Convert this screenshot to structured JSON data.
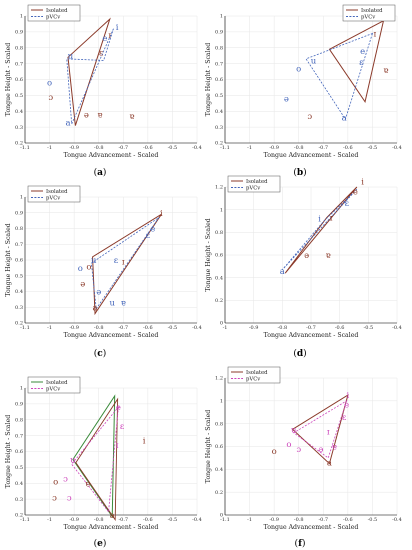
{
  "colors": {
    "isolated": "#8b3a2a",
    "pvcv": "#4466bb",
    "pvcv_alt": "#cc44bb",
    "green": "#3a8a3a",
    "grid": "#e6e6e6",
    "axis": "#000000"
  },
  "chart_data": [
    {
      "type": "scatter",
      "caption": "(a)",
      "xlabel": "Tongue Advancement - Scaled",
      "ylabel": "Tongue Height - Scaled",
      "xlim": [
        -1.1,
        -0.4
      ],
      "ylim": [
        0.2,
        1.0
      ],
      "xticks": [
        "-1.1",
        "-1",
        "-0.9",
        "-0.8",
        "-0.7",
        "-0.6",
        "-0.5",
        "-0.4"
      ],
      "yticks": [
        "0.2",
        "0.3",
        "0.4",
        "0.5",
        "0.6",
        "0.7",
        "0.8",
        "0.9",
        "1"
      ],
      "legend": [
        "Isolated",
        "pVCv"
      ],
      "legend_loc": "top-left",
      "isolated": [
        [
          -0.755,
          0.98
        ],
        [
          -0.895,
          0.31
        ],
        [
          -0.925,
          0.74
        ]
      ],
      "pvcv": [
        [
          -0.74,
          0.92
        ],
        [
          -0.91,
          0.32
        ],
        [
          -0.93,
          0.73
        ],
        [
          -0.78,
          0.72
        ]
      ],
      "points": [
        {
          "label": "i",
          "x": -0.725,
          "y": 0.93,
          "c": "pvcv"
        },
        {
          "label": "ɪ",
          "x": -0.755,
          "y": 0.88,
          "c": "isolated"
        },
        {
          "label": "e",
          "x": -0.775,
          "y": 0.86,
          "c": "pvcv"
        },
        {
          "label": "ɛ",
          "x": -0.79,
          "y": 0.77,
          "c": "isolated"
        },
        {
          "label": "u",
          "x": -0.915,
          "y": 0.75,
          "c": "pvcv"
        },
        {
          "label": "o",
          "x": -1.0,
          "y": 0.58,
          "c": "pvcv"
        },
        {
          "label": "ɔ",
          "x": -0.995,
          "y": 0.49,
          "c": "isolated"
        },
        {
          "label": "ə",
          "x": -0.85,
          "y": 0.38,
          "c": "isolated"
        },
        {
          "label": "ɐ",
          "x": -0.795,
          "y": 0.38,
          "c": "isolated"
        },
        {
          "label": "a",
          "x": -0.925,
          "y": 0.33,
          "c": "pvcv"
        },
        {
          "label": "ɐ",
          "x": -0.665,
          "y": 0.37,
          "c": "isolated"
        }
      ]
    },
    {
      "type": "scatter",
      "caption": "(b)",
      "xlabel": "Tongue Advancement - Scaled",
      "ylabel": "Tongue Height - Scaled",
      "xlim": [
        -1.1,
        -0.4
      ],
      "ylim": [
        0.2,
        1.0
      ],
      "xticks": [
        "-1.1",
        "-1",
        "-0.9",
        "-0.8",
        "-0.7",
        "-0.6",
        "-0.5",
        "-0.4"
      ],
      "yticks": [
        "0.2",
        "0.3",
        "0.4",
        "0.5",
        "0.6",
        "0.7",
        "0.8",
        "0.9",
        "1"
      ],
      "legend": [
        "Isolated",
        "pVCv"
      ],
      "legend_loc": "top-right",
      "isolated": [
        [
          -0.455,
          0.97
        ],
        [
          -0.53,
          0.46
        ],
        [
          -0.675,
          0.79
        ]
      ],
      "pvcv": [
        [
          -0.5,
          0.89
        ],
        [
          -0.61,
          0.35
        ],
        [
          -0.77,
          0.73
        ]
      ],
      "points": [
        {
          "label": "ɪ",
          "x": -0.49,
          "y": 0.89,
          "c": "isolated"
        },
        {
          "label": "e",
          "x": -0.54,
          "y": 0.78,
          "c": "pvcv"
        },
        {
          "label": "ɛ",
          "x": -0.545,
          "y": 0.71,
          "c": "pvcv"
        },
        {
          "label": "ɐ",
          "x": -0.445,
          "y": 0.66,
          "c": "isolated"
        },
        {
          "label": "u",
          "x": -0.74,
          "y": 0.72,
          "c": "pvcv"
        },
        {
          "label": "o",
          "x": -0.8,
          "y": 0.67,
          "c": "pvcv"
        },
        {
          "label": "ə",
          "x": -0.85,
          "y": 0.48,
          "c": "pvcv"
        },
        {
          "label": "ɔ",
          "x": -0.755,
          "y": 0.37,
          "c": "isolated"
        },
        {
          "label": "a",
          "x": -0.615,
          "y": 0.36,
          "c": "pvcv"
        }
      ]
    },
    {
      "type": "scatter",
      "caption": "(c)",
      "xlabel": "Tongue Advancement - Scaled",
      "ylabel": "Tongue Height - Scaled",
      "xlim": [
        -1.1,
        -0.4
      ],
      "ylim": [
        0.2,
        1.0
      ],
      "xticks": [
        "-1.1",
        "-1",
        "-0.9",
        "-0.8",
        "-0.7",
        "-0.6",
        "-0.5",
        "-0.4"
      ],
      "yticks": [
        "0.2",
        "0.3",
        "0.4",
        "0.5",
        "0.6",
        "0.7",
        "0.8",
        "0.9",
        "1"
      ],
      "legend": [
        "Isolated",
        "pVCv"
      ],
      "legend_loc": "top-left",
      "isolated": [
        [
          -0.545,
          0.89
        ],
        [
          -0.815,
          0.26
        ],
        [
          -0.825,
          0.62
        ]
      ],
      "pvcv": [
        [
          -0.555,
          0.87
        ],
        [
          -0.81,
          0.29
        ],
        [
          -0.83,
          0.58
        ]
      ],
      "points": [
        {
          "label": "i",
          "x": -0.545,
          "y": 0.9,
          "c": "isolated"
        },
        {
          "label": "e",
          "x": -0.58,
          "y": 0.8,
          "c": "pvcv"
        },
        {
          "label": "ɛ",
          "x": -0.6,
          "y": 0.76,
          "c": "pvcv"
        },
        {
          "label": "ɪ",
          "x": -0.7,
          "y": 0.59,
          "c": "isolated"
        },
        {
          "label": "ɛ",
          "x": -0.73,
          "y": 0.6,
          "c": "pvcv"
        },
        {
          "label": "u",
          "x": -0.82,
          "y": 0.6,
          "c": "pvcv"
        },
        {
          "label": "o",
          "x": -0.84,
          "y": 0.56,
          "c": "isolated"
        },
        {
          "label": "o",
          "x": -0.875,
          "y": 0.55,
          "c": "pvcv"
        },
        {
          "label": "ə",
          "x": -0.865,
          "y": 0.45,
          "c": "isolated"
        },
        {
          "label": "ə",
          "x": -0.8,
          "y": 0.4,
          "c": "pvcv"
        },
        {
          "label": "u",
          "x": -0.745,
          "y": 0.33,
          "c": "pvcv"
        },
        {
          "label": "ɐ",
          "x": -0.7,
          "y": 0.33,
          "c": "pvcv"
        },
        {
          "label": "a",
          "x": -0.815,
          "y": 0.3,
          "c": "isolated"
        }
      ]
    },
    {
      "type": "scatter",
      "caption": "(d)",
      "xlabel": "Tongue Advancement - Scaled",
      "ylabel": "Tongue Height - Scaled",
      "xlim": [
        -1.0,
        -0.4
      ],
      "ylim": [
        0.0,
        1.2
      ],
      "xticks": [
        "-1",
        "-0.9",
        "-0.8",
        "-0.7",
        "-0.6",
        "-0.5",
        "-0.4"
      ],
      "yticks": [
        "0",
        "0.2",
        "0.4",
        "0.6",
        "0.8",
        "1",
        "1.2"
      ],
      "legend": [
        "Isolated",
        "pVCv"
      ],
      "legend_loc": "top-left",
      "isolated": [
        [
          -0.54,
          1.2
        ],
        [
          -0.79,
          0.44
        ],
        [
          -0.645,
          0.93
        ]
      ],
      "pvcv": [
        [
          -0.54,
          1.18
        ],
        [
          -0.8,
          0.47
        ],
        [
          -0.655,
          0.9
        ]
      ],
      "points": [
        {
          "label": "i",
          "x": -0.52,
          "y": 1.25,
          "c": "isolated"
        },
        {
          "label": "e",
          "x": -0.545,
          "y": 1.16,
          "c": "isolated"
        },
        {
          "label": "ɛ",
          "x": -0.575,
          "y": 1.06,
          "c": "pvcv"
        },
        {
          "label": "ɪ",
          "x": -0.63,
          "y": 0.93,
          "c": "isolated"
        },
        {
          "label": "i",
          "x": -0.67,
          "y": 0.92,
          "c": "pvcv"
        },
        {
          "label": "ɐ",
          "x": -0.64,
          "y": 0.6,
          "c": "isolated"
        },
        {
          "label": "ə",
          "x": -0.715,
          "y": 0.6,
          "c": "isolated"
        },
        {
          "label": "a",
          "x": -0.8,
          "y": 0.46,
          "c": "pvcv"
        }
      ]
    },
    {
      "type": "scatter",
      "caption": "(e)",
      "xlabel": "Tongue Advancement - Scaled",
      "ylabel": "Tongue Height - Scaled",
      "xlim": [
        -1.1,
        -0.4
      ],
      "ylim": [
        0.2,
        1.0
      ],
      "xticks": [
        "-1.1",
        "-1",
        "-0.9",
        "-0.8",
        "-0.7",
        "-0.6",
        "-0.5",
        "-0.4"
      ],
      "yticks": [
        "0.2",
        "0.3",
        "0.4",
        "0.5",
        "0.6",
        "0.7",
        "0.8",
        "0.9",
        "1"
      ],
      "legend": [
        "Isolated",
        "pVCv"
      ],
      "legend_loc": "top-left",
      "isolated": [
        [
          -0.735,
          0.95
        ],
        [
          -0.745,
          0.19
        ],
        [
          -0.905,
          0.55
        ]
      ],
      "pvcv": [
        [
          -0.72,
          0.88
        ],
        [
          -0.76,
          0.22
        ],
        [
          -0.91,
          0.52
        ]
      ],
      "points": [
        {
          "label": "e",
          "x": -0.72,
          "y": 0.88,
          "c": "pvcv"
        },
        {
          "label": "ɛ",
          "x": -0.705,
          "y": 0.76,
          "c": "pvcv"
        },
        {
          "label": "i",
          "x": -0.615,
          "y": 0.67,
          "c": "isolated"
        },
        {
          "label": "ɪ",
          "x": -0.725,
          "y": 0.64,
          "c": "pvcv"
        },
        {
          "label": "u",
          "x": -0.905,
          "y": 0.55,
          "c": "pvcv"
        },
        {
          "label": "ɐ",
          "x": -0.845,
          "y": 0.4,
          "c": "isolated"
        },
        {
          "label": "o",
          "x": -0.975,
          "y": 0.41,
          "c": "isolated"
        },
        {
          "label": "ɔ",
          "x": -0.935,
          "y": 0.43,
          "c": "pvcv"
        },
        {
          "label": "ɔ",
          "x": -0.98,
          "y": 0.31,
          "c": "isolated"
        },
        {
          "label": "ɔ",
          "x": -0.92,
          "y": 0.31,
          "c": "pvcv"
        },
        {
          "label": "a",
          "x": -0.745,
          "y": 0.2,
          "c": "isolated"
        }
      ]
    },
    {
      "type": "scatter",
      "caption": "(f)",
      "xlabel": "Tongue Advancement - Scaled",
      "ylabel": "Tongue Height - Scaled",
      "xlim": [
        -1.1,
        -0.4
      ],
      "ylim": [
        0.0,
        1.2
      ],
      "xticks": [
        "-1.1",
        "-1",
        "-0.9",
        "-0.8",
        "-0.7",
        "-0.6",
        "-0.5",
        "-0.4"
      ],
      "yticks": [
        "0",
        "0.2",
        "0.4",
        "0.6",
        "0.8",
        "1",
        "1.2"
      ],
      "legend": [
        "Isolated",
        "pVCv"
      ],
      "legend_loc": "top-left",
      "isolated": [
        [
          -0.6,
          1.05
        ],
        [
          -0.675,
          0.45
        ],
        [
          -0.825,
          0.75
        ]
      ],
      "pvcv": [
        [
          -0.605,
          1.0
        ],
        [
          -0.68,
          0.5
        ],
        [
          -0.82,
          0.72
        ]
      ],
      "points": [
        {
          "label": "i",
          "x": -0.6,
          "y": 1.05,
          "c": "pvcv"
        },
        {
          "label": "e",
          "x": -0.605,
          "y": 0.97,
          "c": "pvcv"
        },
        {
          "label": "ɛ",
          "x": -0.615,
          "y": 0.86,
          "c": "pvcv"
        },
        {
          "label": "ɪ",
          "x": -0.68,
          "y": 0.73,
          "c": "pvcv"
        },
        {
          "label": "u",
          "x": -0.82,
          "y": 0.75,
          "c": "pvcv"
        },
        {
          "label": "o",
          "x": -0.84,
          "y": 0.62,
          "c": "pvcv"
        },
        {
          "label": "ɔ",
          "x": -0.8,
          "y": 0.58,
          "c": "pvcv"
        },
        {
          "label": "o",
          "x": -0.9,
          "y": 0.56,
          "c": "isolated"
        },
        {
          "label": "ə",
          "x": -0.71,
          "y": 0.58,
          "c": "pvcv"
        },
        {
          "label": "ɐ",
          "x": -0.655,
          "y": 0.6,
          "c": "pvcv"
        },
        {
          "label": "a",
          "x": -0.675,
          "y": 0.46,
          "c": "isolated"
        }
      ]
    }
  ]
}
